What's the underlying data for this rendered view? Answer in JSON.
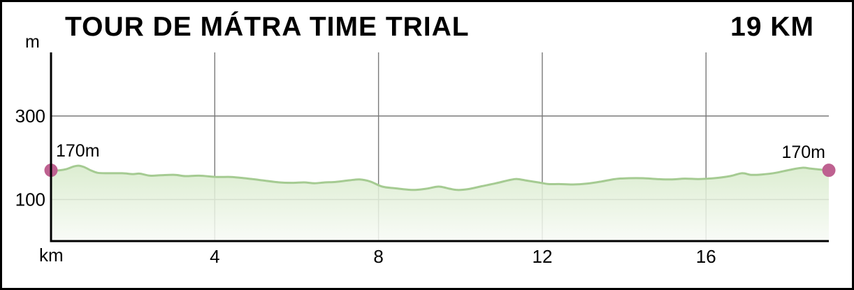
{
  "header": {
    "title": "TOUR DE MÁTRA TIME TRIAL",
    "distance_label": "19 KM"
  },
  "chart_data": {
    "type": "area",
    "title": "TOUR DE MÁTRA TIME TRIAL",
    "subtitle": "19 KM",
    "xlabel": "km",
    "ylabel": "m",
    "x_range_km": [
      0,
      19
    ],
    "x_ticks_km": [
      4,
      8,
      12,
      16
    ],
    "y_ticks_m": [
      100,
      300
    ],
    "grid": "on",
    "start_annotation": "170m",
    "end_annotation": "170m",
    "start_point": {
      "km": 0,
      "elevation_m": 170
    },
    "end_point": {
      "km": 19,
      "elevation_m": 170
    },
    "profile": [
      [
        0,
        170
      ],
      [
        0.2,
        170
      ],
      [
        0.38,
        173
      ],
      [
        0.55,
        179
      ],
      [
        0.67,
        181
      ],
      [
        0.8,
        178
      ],
      [
        0.97,
        170
      ],
      [
        1.14,
        164
      ],
      [
        1.4,
        163
      ],
      [
        1.74,
        163
      ],
      [
        2.0,
        161
      ],
      [
        2.17,
        162
      ],
      [
        2.42,
        157
      ],
      [
        2.68,
        158
      ],
      [
        3.02,
        159
      ],
      [
        3.28,
        156
      ],
      [
        3.62,
        157
      ],
      [
        4.05,
        154
      ],
      [
        4.39,
        154
      ],
      [
        4.73,
        151
      ],
      [
        5.07,
        147
      ],
      [
        5.58,
        141
      ],
      [
        5.92,
        140
      ],
      [
        6.18,
        141
      ],
      [
        6.44,
        139
      ],
      [
        6.69,
        141
      ],
      [
        6.95,
        142
      ],
      [
        7.29,
        146
      ],
      [
        7.54,
        148
      ],
      [
        7.8,
        143
      ],
      [
        8.09,
        131
      ],
      [
        8.4,
        127
      ],
      [
        8.83,
        123
      ],
      [
        9.17,
        126
      ],
      [
        9.47,
        131
      ],
      [
        9.73,
        126
      ],
      [
        9.93,
        123
      ],
      [
        10.19,
        125
      ],
      [
        10.53,
        132
      ],
      [
        10.87,
        139
      ],
      [
        11.22,
        147
      ],
      [
        11.39,
        149
      ],
      [
        11.64,
        145
      ],
      [
        11.9,
        141
      ],
      [
        12.15,
        137
      ],
      [
        12.41,
        137
      ],
      [
        12.75,
        136
      ],
      [
        13.09,
        138
      ],
      [
        13.44,
        143
      ],
      [
        13.78,
        149
      ],
      [
        14.12,
        151
      ],
      [
        14.46,
        151
      ],
      [
        14.8,
        149
      ],
      [
        15.14,
        148
      ],
      [
        15.48,
        150
      ],
      [
        15.82,
        149
      ],
      [
        16.2,
        151
      ],
      [
        16.59,
        156
      ],
      [
        16.88,
        163
      ],
      [
        17.1,
        159
      ],
      [
        17.36,
        160
      ],
      [
        17.7,
        164
      ],
      [
        18.04,
        171
      ],
      [
        18.35,
        176
      ],
      [
        18.56,
        174
      ],
      [
        18.76,
        172
      ],
      [
        19,
        170
      ]
    ],
    "colors": {
      "line": "#a5cb92",
      "fill_top": "#d6eac9",
      "fill_bottom": "#f8fbf6",
      "dot": "#be6190",
      "grid": "#7a7a7a",
      "axis": "#000000",
      "text": "#000000",
      "background": "#ffffff"
    }
  }
}
